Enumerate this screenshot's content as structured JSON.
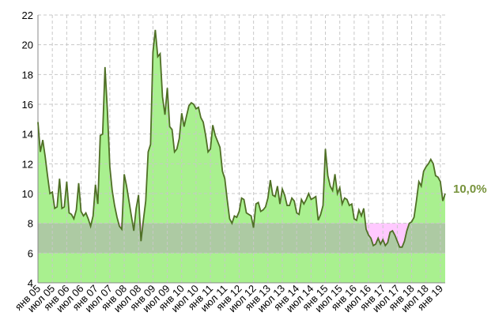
{
  "chart_data": {
    "type": "area",
    "categories": [
      "янв 05",
      null,
      null,
      null,
      null,
      null,
      "июл 05",
      null,
      null,
      null,
      null,
      null,
      "янв 06",
      null,
      null,
      null,
      null,
      null,
      "июл 06",
      null,
      null,
      null,
      null,
      null,
      "янв 07",
      null,
      null,
      null,
      null,
      null,
      "июл 07",
      null,
      null,
      null,
      null,
      null,
      "янв 08",
      null,
      null,
      null,
      null,
      null,
      "июл 08",
      null,
      null,
      null,
      null,
      null,
      "янв 09",
      null,
      null,
      null,
      null,
      null,
      "июл 09",
      null,
      null,
      null,
      null,
      null,
      "янв 10",
      null,
      null,
      null,
      null,
      null,
      "июл 10",
      null,
      null,
      null,
      null,
      null,
      "янв 11",
      null,
      null,
      null,
      null,
      null,
      "июл 11",
      null,
      null,
      null,
      null,
      null,
      "янв 12",
      null,
      null,
      null,
      null,
      null,
      "июл 12",
      null,
      null,
      null,
      null,
      null,
      "янв 13",
      null,
      null,
      null,
      null,
      null,
      "июл 13",
      null,
      null,
      null,
      null,
      null,
      "янв 14",
      null,
      null,
      null,
      null,
      null,
      "июл 14",
      null,
      null,
      null,
      null,
      null,
      "янв 15",
      null,
      null,
      null,
      null,
      null,
      "июл 15",
      null,
      null,
      null,
      null,
      null,
      "янв 16",
      null,
      null,
      null,
      null,
      null,
      "июл 16",
      null,
      null,
      null,
      null,
      null,
      "янв 17",
      null,
      null,
      null,
      null,
      null,
      "июл 17",
      null,
      null,
      null,
      null,
      null,
      "янв 18",
      null,
      null,
      null,
      null,
      null,
      "июл 18",
      null,
      null,
      null,
      null,
      null,
      "янв 19",
      null,
      null
    ],
    "series": [
      {
        "color": "#4f6f25",
        "values": [
          14.8,
          12.8,
          13.6,
          12.5,
          11.2,
          10.0,
          10.1,
          9.0,
          9.1,
          11.0,
          9.0,
          9.1,
          10.8,
          8.7,
          8.6,
          8.3,
          8.9,
          10.7,
          8.8,
          8.5,
          8.7,
          8.3,
          7.8,
          8.5,
          10.6,
          9.3,
          13.9,
          14.0,
          18.5,
          15.5,
          11.8,
          10.2,
          9.2,
          8.4,
          7.8,
          7.6,
          11.3,
          10.5,
          9.5,
          8.5,
          7.5,
          9.0,
          9.9,
          6.8,
          8.2,
          9.5,
          12.8,
          13.3,
          19.5,
          21.0,
          19.2,
          19.4,
          16.5,
          15.3,
          17.1,
          14.5,
          14.3,
          12.8,
          13.0,
          13.7,
          15.4,
          14.5,
          15.2,
          15.9,
          16.1,
          16.0,
          15.7,
          15.8,
          15.1,
          14.8,
          13.9,
          12.8,
          13.0,
          14.6,
          13.9,
          13.5,
          13.1,
          11.5,
          11.0,
          9.6,
          8.3,
          8.0,
          8.5,
          8.4,
          8.8,
          9.7,
          9.6,
          8.7,
          8.6,
          8.5,
          7.7,
          9.3,
          9.4,
          8.8,
          8.9,
          9.1,
          9.7,
          10.9,
          9.9,
          9.8,
          10.5,
          9.3,
          10.3,
          9.9,
          9.2,
          9.2,
          9.7,
          9.5,
          8.7,
          8.6,
          9.6,
          9.3,
          9.6,
          10.0,
          9.6,
          9.7,
          9.8,
          8.2,
          8.6,
          9.2,
          13.0,
          11.2,
          10.5,
          10.2,
          11.3,
          10.0,
          10.4,
          9.3,
          9.7,
          9.6,
          9.2,
          9.3,
          8.3,
          8.2,
          8.9,
          8.5,
          9.0,
          7.6,
          7.2,
          7.0,
          6.5,
          6.6,
          7.0,
          6.6,
          6.9,
          6.5,
          6.7,
          7.4,
          7.5,
          7.2,
          6.8,
          6.4,
          6.4,
          6.8,
          7.5,
          8.0,
          8.1,
          8.4,
          9.5,
          10.8,
          10.5,
          11.5,
          11.8,
          12.0,
          12.3,
          12.0,
          11.2,
          11.1,
          10.8,
          9.5,
          10.0
        ],
        "fill": "#a9f08f",
        "below_fill": "#ffc9ff"
      }
    ],
    "band": {
      "from": 6,
      "to": 8,
      "color": "#b0b0b0"
    },
    "annotation": {
      "text": "10,0%",
      "color": "#77933c"
    },
    "ylim": [
      4,
      22
    ],
    "yticks": [
      4,
      6,
      8,
      10,
      12,
      14,
      16,
      18,
      20,
      22
    ],
    "grid": true
  }
}
